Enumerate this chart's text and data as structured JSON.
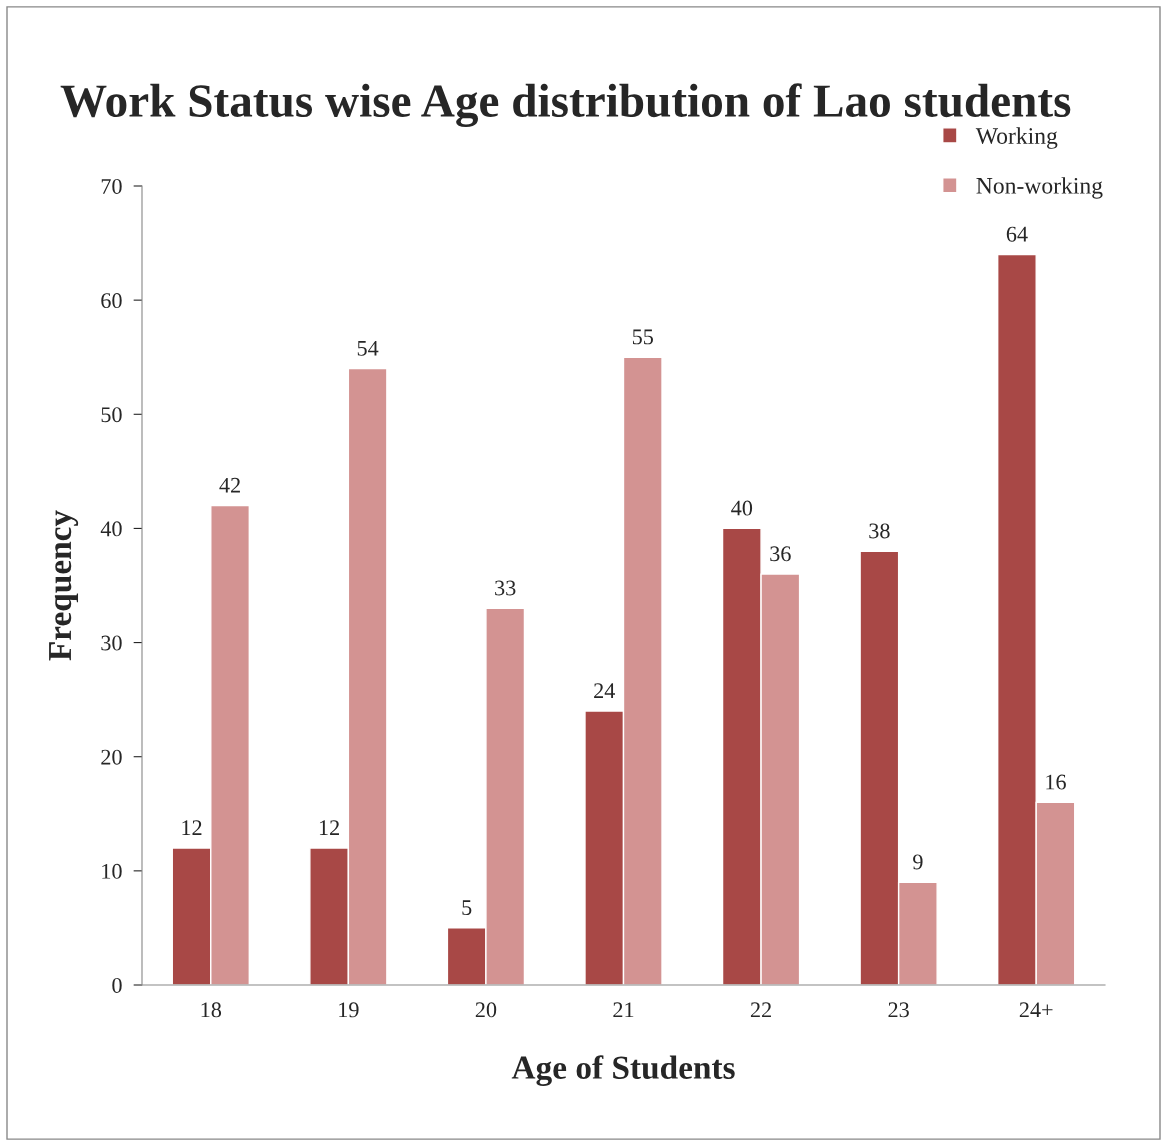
{
  "chart_data": {
    "type": "bar",
    "title": "Work Status wise Age distribution of Lao students",
    "xlabel": "Age of Students",
    "ylabel": "Frequency",
    "categories": [
      "18",
      "19",
      "20",
      "21",
      "22",
      "23",
      "24+"
    ],
    "series": [
      {
        "name": "Working",
        "color": "#a84846",
        "values": [
          12,
          12,
          5,
          24,
          40,
          38,
          64
        ]
      },
      {
        "name": "Non-working",
        "color": "#d39392",
        "values": [
          42,
          54,
          33,
          55,
          36,
          9,
          16
        ]
      }
    ],
    "ylim": [
      0,
      70
    ],
    "yticks": [
      0,
      10,
      20,
      30,
      40,
      50,
      60,
      70
    ],
    "grid": false,
    "legend": "top right",
    "data_labels": true
  }
}
